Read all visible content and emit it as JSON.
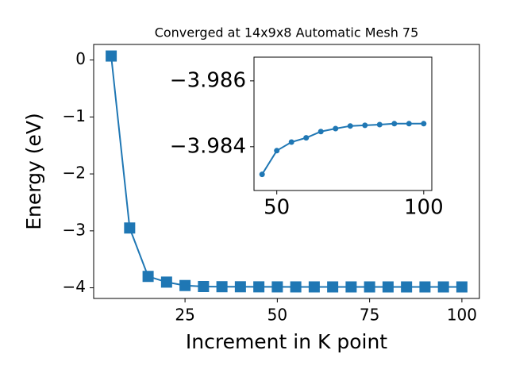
{
  "chart_data": [
    {
      "type": "line",
      "title": "Converged at 14x9x8 Automatic Mesh 75",
      "xlabel": "Increment in K point",
      "ylabel": "Energy (eV)",
      "x": [
        5,
        10,
        15,
        20,
        25,
        30,
        35,
        40,
        45,
        50,
        55,
        60,
        65,
        70,
        75,
        80,
        85,
        90,
        95,
        100
      ],
      "series": [
        {
          "name": "Energy",
          "color": "#1f77b4",
          "marker": "square",
          "values": [
            0.07,
            -2.95,
            -3.8,
            -3.9,
            -3.96,
            -3.978,
            -3.981,
            -3.982,
            -3.98316,
            -3.98388,
            -3.98414,
            -3.98427,
            -3.98446,
            -3.98455,
            -3.98463,
            -3.98465,
            -3.98467,
            -3.9847,
            -3.9847,
            -3.9847
          ]
        }
      ],
      "xlim": [
        0.25,
        104.75
      ],
      "ylim": [
        -4.187,
        0.273
      ],
      "xticks": [
        25,
        50,
        75,
        100
      ],
      "yticks": [
        {
          "value": -4,
          "label": "−4"
        },
        {
          "value": -3,
          "label": "−3"
        },
        {
          "value": -2,
          "label": "−2"
        },
        {
          "value": -1,
          "label": "−1"
        },
        0
      ]
    },
    {
      "type": "line",
      "x": [
        45,
        50,
        55,
        60,
        65,
        70,
        75,
        80,
        85,
        90,
        95,
        100
      ],
      "series": [
        {
          "name": "Energy",
          "color": "#1f77b4",
          "marker": "circle",
          "values": [
            -3.98316,
            -3.98388,
            -3.98414,
            -3.98427,
            -3.98446,
            -3.98455,
            -3.98463,
            -3.98465,
            -3.98467,
            -3.9847,
            -3.9847,
            -3.9847
          ]
        }
      ],
      "xlim": [
        42.25,
        102.75
      ],
      "ylim": [
        -3.98267,
        -3.98672
      ],
      "xticks": [
        50,
        100
      ],
      "yticks": [
        {
          "value": -3.984,
          "label": "−3.984"
        },
        {
          "value": -3.986,
          "label": "−3.986"
        }
      ]
    }
  ]
}
